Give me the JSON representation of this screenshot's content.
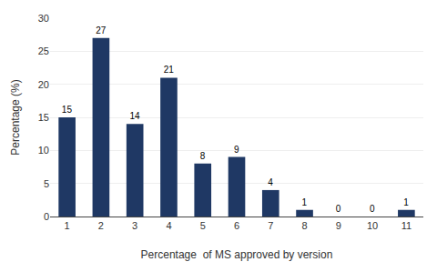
{
  "chart_data": {
    "type": "bar",
    "x": [
      1,
      2,
      3,
      4,
      5,
      6,
      7,
      8,
      9,
      10,
      11
    ],
    "values": [
      15,
      27,
      14,
      21,
      8,
      9,
      4,
      1,
      0,
      0,
      1
    ],
    "color": "#1F3864",
    "xlabel": "Percentage  of MS approved by version",
    "ylabel": "Percentage (%)",
    "xlim": [
      0.5,
      11.5
    ],
    "xticks": [
      1,
      2,
      3,
      4,
      5,
      6,
      7,
      8,
      9,
      10,
      11
    ],
    "ylim": [
      0,
      30
    ],
    "yticks": [
      0,
      5,
      10,
      15,
      20,
      25,
      30
    ],
    "grid": true,
    "data_labels": true
  }
}
